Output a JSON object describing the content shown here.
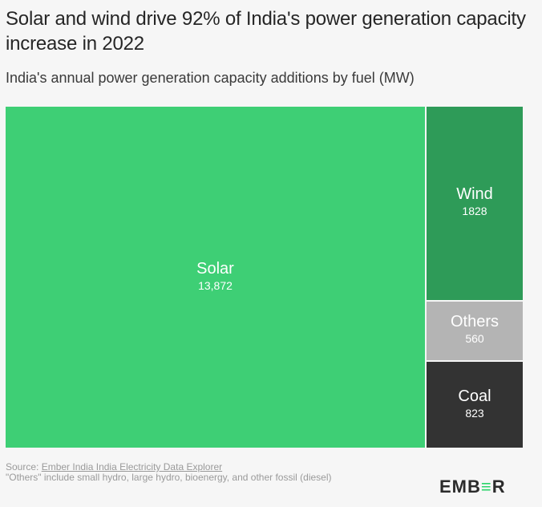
{
  "title": "Solar and wind drive 92% of India's power generation capacity increase in 2022",
  "subtitle": "India's annual power generation capacity additions by fuel (MW)",
  "chart_data": {
    "type": "treemap",
    "title": "Solar and wind drive 92% of India's power generation capacity increase in 2022",
    "subtitle": "India's annual power generation capacity additions by fuel (MW)",
    "unit": "MW",
    "items": [
      {
        "name": "Solar",
        "value": 13872,
        "display": "13,872",
        "color": "#3ecf75",
        "text_color": "#ffffff"
      },
      {
        "name": "Wind",
        "value": 1828,
        "display": "1828",
        "color": "#2e9b58",
        "text_color": "#ffffff"
      },
      {
        "name": "Others",
        "value": 560,
        "display": "560",
        "color": "#b4b4b4",
        "text_color": "#ffffff"
      },
      {
        "name": "Coal",
        "value": 823,
        "display": "823",
        "color": "#333333",
        "text_color": "#ffffff"
      }
    ]
  },
  "footer": {
    "source_prefix": "Source: ",
    "source_link": "Ember India India Electricity Data Explorer",
    "note": "\"Others\" include small hydro, large hydro, bioenergy, and other fossil (diesel)"
  },
  "logo": {
    "part1": "EMB",
    "part2": "≡",
    "part3": "R"
  }
}
